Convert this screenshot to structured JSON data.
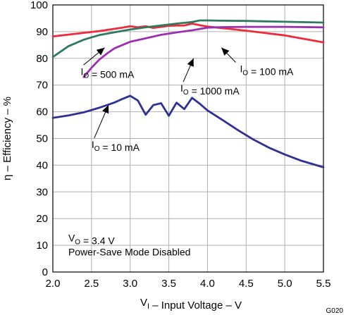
{
  "figure_code": "G020",
  "chart_data": {
    "type": "line",
    "xlabel": "V_I – Input Voltage – V",
    "ylabel": "η – Efficiency – %",
    "xlim": [
      2.0,
      5.5
    ],
    "ylim": [
      0,
      100
    ],
    "xticks": [
      "2.0",
      "2.5",
      "3.0",
      "3.5",
      "4.0",
      "4.5",
      "5.0",
      "5.5"
    ],
    "yticks": [
      "0",
      "10",
      "20",
      "30",
      "40",
      "50",
      "60",
      "70",
      "80",
      "90",
      "100"
    ],
    "grid": true,
    "conditions": {
      "line1": "V_O = 3.4 V",
      "line2": "Power-Save Mode Disabled"
    },
    "series": [
      {
        "label": "I_O = 10 mA",
        "color": "#2e3192",
        "x": [
          2.0,
          2.2,
          2.4,
          2.6,
          2.8,
          2.9,
          3.0,
          3.1,
          3.2,
          3.3,
          3.4,
          3.5,
          3.6,
          3.7,
          3.8,
          3.9,
          4.0,
          4.2,
          4.4,
          4.6,
          4.8,
          5.0,
          5.2,
          5.5
        ],
        "y": [
          57.7,
          58.6,
          59.8,
          61.5,
          63.5,
          64.8,
          66.0,
          64.2,
          58.9,
          62.5,
          63.2,
          58.5,
          63.4,
          61.0,
          65.2,
          63.0,
          60.5,
          56.8,
          53.0,
          49.5,
          46.5,
          44.0,
          41.8,
          39.2
        ]
      },
      {
        "label": "I_O = 100 mA",
        "color": "#ee2b3b",
        "x": [
          2.0,
          2.3,
          2.6,
          2.9,
          3.0,
          3.1,
          3.2,
          3.3,
          3.4,
          3.5,
          3.6,
          3.7,
          3.8,
          3.9,
          4.0,
          4.3,
          4.6,
          5.0,
          5.5
        ],
        "y": [
          88.2,
          89.2,
          90.2,
          91.5,
          92.0,
          91.6,
          92.0,
          91.4,
          91.8,
          92.2,
          92.3,
          92.3,
          93.0,
          92.4,
          91.9,
          91.0,
          90.0,
          88.6,
          86.0
        ]
      },
      {
        "label": "I_O = 500 mA",
        "color": "#2f7a5d",
        "x": [
          2.0,
          2.2,
          2.4,
          2.6,
          2.8,
          3.0,
          3.2,
          3.4,
          3.6,
          3.8,
          3.9,
          4.0,
          4.2,
          4.5,
          5.0,
          5.5
        ],
        "y": [
          80.5,
          84.5,
          87.0,
          88.7,
          89.8,
          90.8,
          91.6,
          92.3,
          93.0,
          93.6,
          94.2,
          94.2,
          94.1,
          94.0,
          93.7,
          93.4
        ]
      },
      {
        "label": "I_O = 1000 mA",
        "color": "#9b2fae",
        "x": [
          2.4,
          2.5,
          2.6,
          2.7,
          2.8,
          3.0,
          3.2,
          3.4,
          3.6,
          3.8,
          4.0,
          4.2,
          4.5,
          5.0,
          5.5
        ],
        "y": [
          73.0,
          76.5,
          79.5,
          81.8,
          83.8,
          86.2,
          87.5,
          88.8,
          89.7,
          90.5,
          91.5,
          91.7,
          91.8,
          91.8,
          91.6
        ]
      }
    ],
    "labels": [
      {
        "series": 0,
        "text": "I_O = 10 mA",
        "at": [
          2.5,
          46.5
        ],
        "arrow_to": [
          2.72,
          62.5
        ]
      },
      {
        "series": 1,
        "text": "I_O = 100 mA",
        "at": [
          4.42,
          74.8
        ],
        "arrow_to": [
          4.18,
          84.0
        ]
      },
      {
        "series": 2,
        "text": "I_O = 500 mA",
        "at": [
          2.36,
          73.8
        ],
        "arrow_to": [
          2.67,
          84.0
        ]
      },
      {
        "series": 3,
        "text": "I_O = 1000 mA",
        "at": [
          3.65,
          67.5
        ],
        "arrow_to": [
          3.82,
          80.0
        ]
      }
    ]
  }
}
